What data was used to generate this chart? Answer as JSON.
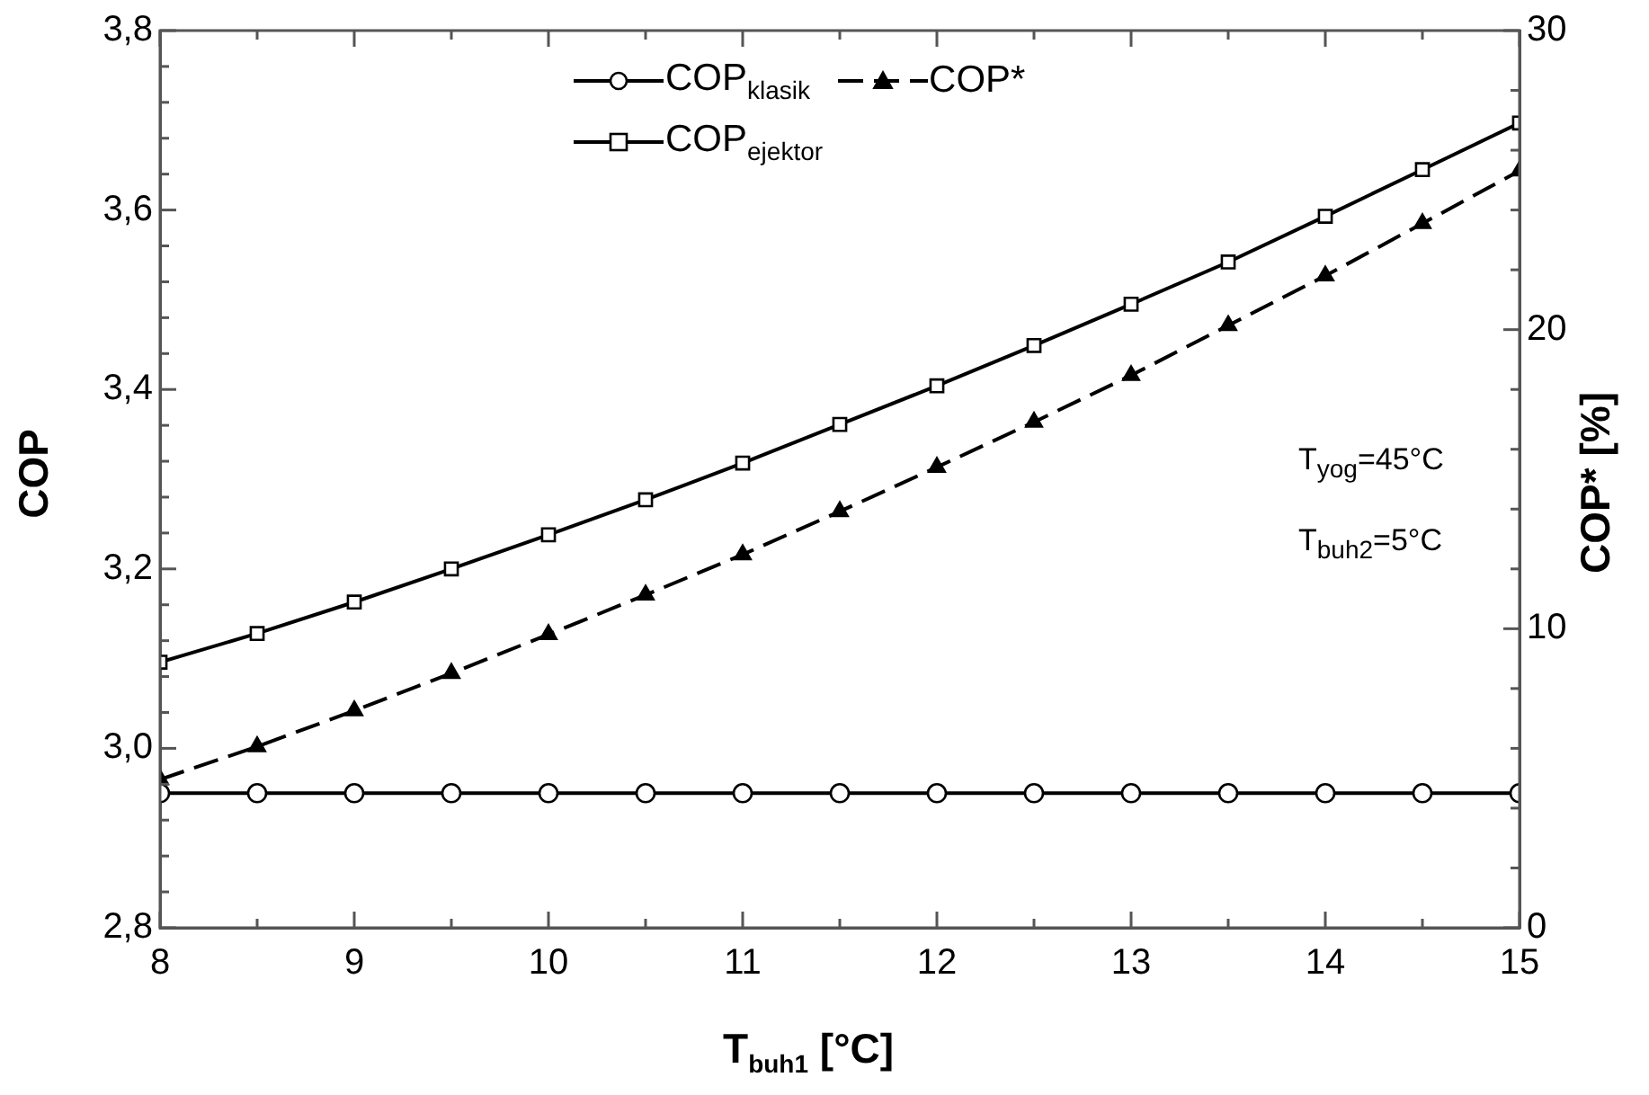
{
  "chart_data": {
    "type": "line",
    "xlabel": "T$_{buh1}$ [°C]",
    "ylabel": "COP",
    "y2label": "COP* [%]",
    "x": [
      8,
      8.5,
      9,
      9.5,
      10,
      10.5,
      11,
      11.5,
      12,
      12.5,
      13,
      13.5,
      14,
      14.5,
      15
    ],
    "series": [
      {
        "name": "COP$_{klasik}$",
        "color": "#000000",
        "marker": "circle",
        "line_style": "solid",
        "values": [
          2.95,
          2.95,
          2.95,
          2.95,
          2.95,
          2.95,
          2.95,
          2.95,
          2.95,
          2.95,
          2.95,
          2.95,
          2.95,
          2.95,
          2.95
        ]
      },
      {
        "name": "COP*",
        "color": "#000000",
        "marker": "triangle",
        "line_style": "dashed",
        "axis": "y2",
        "values": [
          4.96,
          6.06,
          7.26,
          8.51,
          9.81,
          11.13,
          12.48,
          13.92,
          15.4,
          16.91,
          18.47,
          20.14,
          21.8,
          23.55,
          25.31
        ]
      },
      {
        "name": "COP$_{ejektor}$",
        "color": "#000000",
        "marker": "square",
        "line_style": "solid",
        "values": [
          3.096,
          3.128,
          3.163,
          3.2,
          3.238,
          3.277,
          3.318,
          3.361,
          3.404,
          3.449,
          3.495,
          3.542,
          3.593,
          3.645,
          3.697
        ]
      }
    ],
    "xlim": [
      8,
      15
    ],
    "xticks": [
      8,
      {
        "value": 8.5,
        "label": null
      },
      9,
      {
        "value": 9.5,
        "label": null
      },
      10,
      {
        "value": 10.5,
        "label": null
      },
      11,
      {
        "value": 11.5,
        "label": null
      },
      12,
      {
        "value": 12.5,
        "label": null
      },
      13,
      {
        "value": 13.5,
        "label": null
      },
      14,
      {
        "value": 14.5,
        "label": null
      },
      15
    ],
    "ylim": [
      2.8,
      3.8
    ],
    "yticks": [
      {
        "value": 2.8,
        "label": "2,8"
      },
      {
        "value": 2.84,
        "label": null
      },
      {
        "value": 2.88,
        "label": null
      },
      {
        "value": 2.92,
        "label": null
      },
      {
        "value": 2.96,
        "label": null
      },
      {
        "value": 3.0,
        "label": "3,0"
      },
      {
        "value": 3.04,
        "label": null
      },
      {
        "value": 3.08,
        "label": null
      },
      {
        "value": 3.12,
        "label": null
      },
      {
        "value": 3.16,
        "label": null
      },
      {
        "value": 3.2,
        "label": "3,2"
      },
      {
        "value": 3.24,
        "label": null
      },
      {
        "value": 3.28,
        "label": null
      },
      {
        "value": 3.32,
        "label": null
      },
      {
        "value": 3.36,
        "label": null
      },
      {
        "value": 3.4,
        "label": "3,4"
      },
      {
        "value": 3.44,
        "label": null
      },
      {
        "value": 3.48,
        "label": null
      },
      {
        "value": 3.52,
        "label": null
      },
      {
        "value": 3.56,
        "label": null
      },
      {
        "value": 3.6,
        "label": "3,6"
      },
      {
        "value": 3.64,
        "label": null
      },
      {
        "value": 3.68,
        "label": null
      },
      {
        "value": 3.72,
        "label": null
      },
      {
        "value": 3.76,
        "label": null
      },
      {
        "value": 3.8,
        "label": "3,8"
      }
    ],
    "y2lim": [
      0,
      30
    ],
    "y2ticks": [
      0,
      {
        "value": 2,
        "label": null
      },
      {
        "value": 4,
        "label": null
      },
      {
        "value": 6,
        "label": null
      },
      {
        "value": 8,
        "label": null
      },
      10,
      {
        "value": 12,
        "label": null
      },
      {
        "value": 14,
        "label": null
      },
      {
        "value": 16,
        "label": null
      },
      {
        "value": 18,
        "label": null
      },
      20,
      {
        "value": 22,
        "label": null
      },
      {
        "value": 24,
        "label": null
      },
      {
        "value": 26,
        "label": null
      },
      {
        "value": 28,
        "label": null
      },
      30
    ],
    "grid": false,
    "legend": "top",
    "annotations": [
      "T$_{yog}$=45°C",
      "T$_{buh2}$=5°C"
    ]
  }
}
